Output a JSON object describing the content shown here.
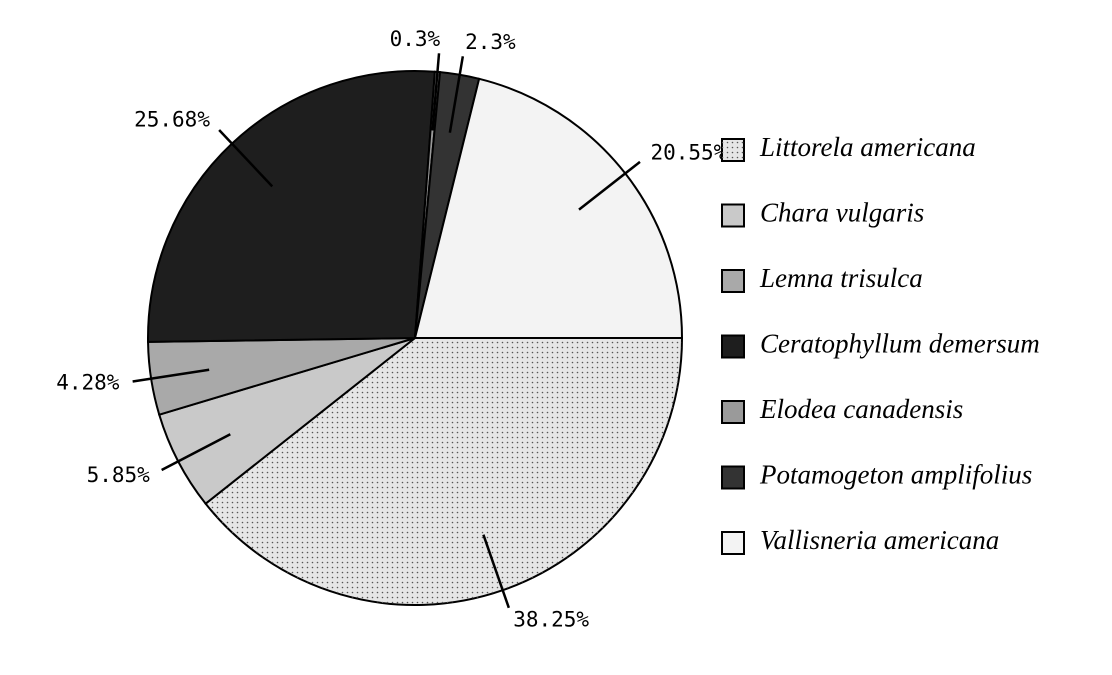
{
  "chart_data": {
    "type": "pie",
    "categories": [
      "Littorela americana",
      "Chara vulgaris",
      "Lemna trisulca",
      "Ceratophyllum demersum",
      "Elodea canadensis",
      "Potamogeton amplifolius",
      "Vallisneria americana"
    ],
    "values": [
      38.25,
      5.85,
      4.28,
      25.68,
      0.3,
      2.3,
      20.55
    ],
    "value_labels": [
      "38.25%",
      "5.85%",
      "4.28%",
      "25.68%",
      "0.3%",
      "2.3%",
      "20.55%"
    ],
    "colors": [
      "#e6e6e6",
      "#c9c9c9",
      "#a9a9a9",
      "#1e1e1e",
      "#9a9a9a",
      "#333333",
      "#f3f3f3"
    ],
    "legend": "right"
  }
}
